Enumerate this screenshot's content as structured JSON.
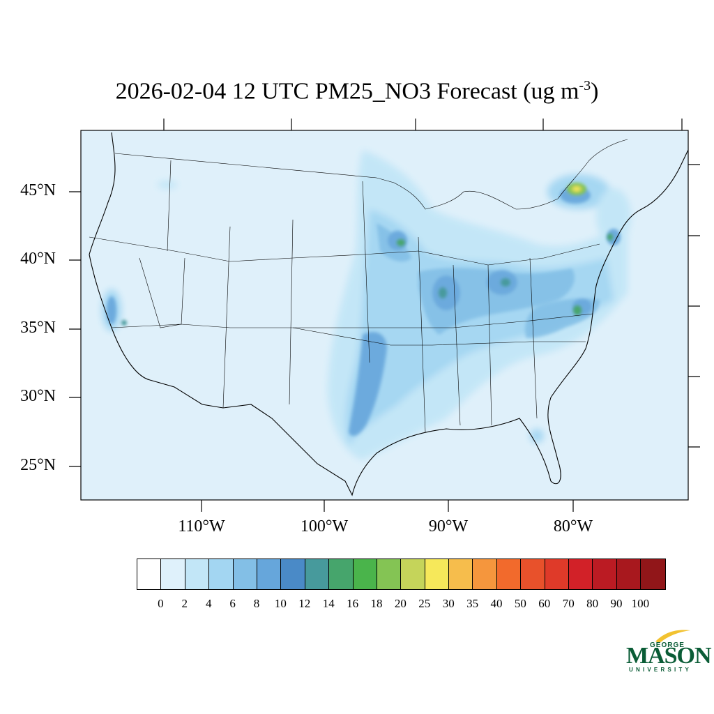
{
  "title": {
    "main": "2026-02-04 12 UTC PM25_NO3 Forecast (ug m",
    "superscript": "-3",
    "closing": ")"
  },
  "map": {
    "background_color": "#dff0fa",
    "lat_labels": [
      "45°N",
      "40°N",
      "35°N",
      "30°N",
      "25°N"
    ],
    "lon_labels": [
      "110°W",
      "100°W",
      "90°W",
      "80°W"
    ]
  },
  "colorbar": {
    "colors": [
      "#ffffff",
      "#dff1fb",
      "#c2e6f7",
      "#a3d6f2",
      "#83bfe6",
      "#66a6db",
      "#4a8ac7",
      "#479a9c",
      "#46a56c",
      "#4ab44b",
      "#84c454",
      "#c5d45a",
      "#f6e85a",
      "#f6bd4c",
      "#f5963d",
      "#f26a2c",
      "#e8512b",
      "#df3a29",
      "#d22128",
      "#bb1b23",
      "#a8181e",
      "#911619"
    ],
    "labels": [
      "0",
      "2",
      "4",
      "6",
      "8",
      "10",
      "12",
      "14",
      "16",
      "18",
      "20",
      "25",
      "30",
      "35",
      "40",
      "50",
      "60",
      "70",
      "80",
      "90",
      "100"
    ]
  },
  "logo": {
    "line1": "GEORGE",
    "line2": "MASON",
    "line3": "UNIVERSITY",
    "color": "#0a5c36",
    "accent": "#f2c230"
  }
}
